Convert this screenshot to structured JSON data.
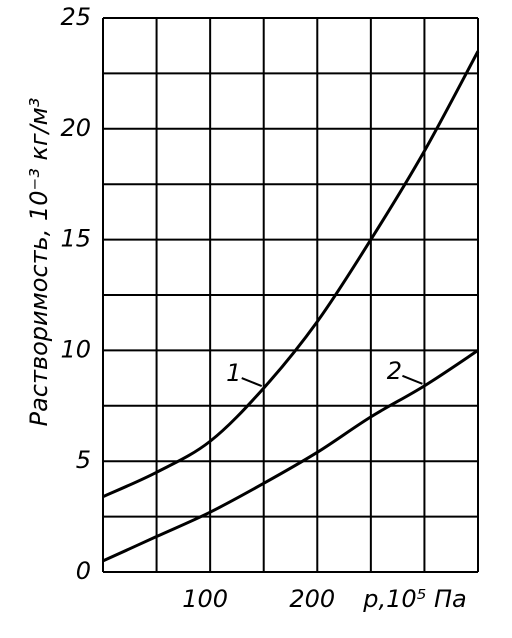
{
  "chart_data": {
    "type": "line",
    "y_label": "Растворимость, 10⁻³ кг/м³",
    "x_label": "p,10⁵ Па",
    "x": [
      0,
      50,
      100,
      150,
      200,
      250,
      300,
      350
    ],
    "series": [
      {
        "name": "1",
        "color": "#000000",
        "values": [
          3.4,
          4.5,
          5.9,
          8.3,
          11.3,
          15.0,
          19.0,
          23.5
        ]
      },
      {
        "name": "2",
        "color": "#000000",
        "values": [
          0.5,
          1.6,
          2.7,
          4.0,
          5.4,
          7.0,
          8.4,
          10.0
        ]
      }
    ],
    "xlim": [
      0,
      350
    ],
    "ylim": [
      0,
      25
    ],
    "xticks": [
      100,
      200
    ],
    "yticks": [
      0,
      5,
      10,
      15,
      20,
      25
    ],
    "xgrid": [
      0,
      50,
      100,
      150,
      200,
      250,
      300,
      350
    ],
    "ygrid": [
      0,
      2.5,
      5,
      7.5,
      10,
      12.5,
      15,
      17.5,
      20,
      22.5,
      25
    ],
    "grid": true
  }
}
